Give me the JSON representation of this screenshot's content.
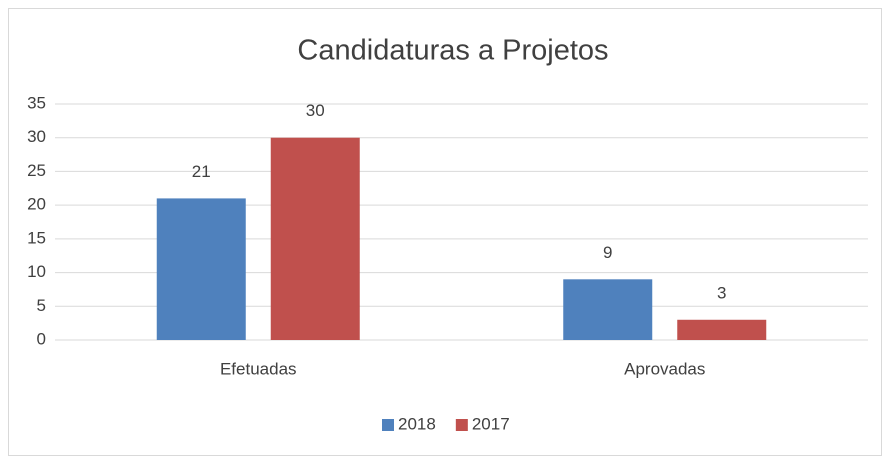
{
  "chart_data": {
    "type": "bar",
    "title": "Candidaturas a Projetos",
    "categories": [
      "Efetuadas",
      "Aprovadas"
    ],
    "series": [
      {
        "name": "2018",
        "color": "#4f81bd",
        "values": [
          21,
          9
        ]
      },
      {
        "name": "2017",
        "color": "#c0504d",
        "values": [
          30,
          3
        ]
      }
    ],
    "ylim": [
      0,
      35
    ],
    "yticks": [
      0,
      5,
      10,
      15,
      20,
      25,
      30,
      35
    ],
    "grid": true,
    "legend": "bottom"
  }
}
